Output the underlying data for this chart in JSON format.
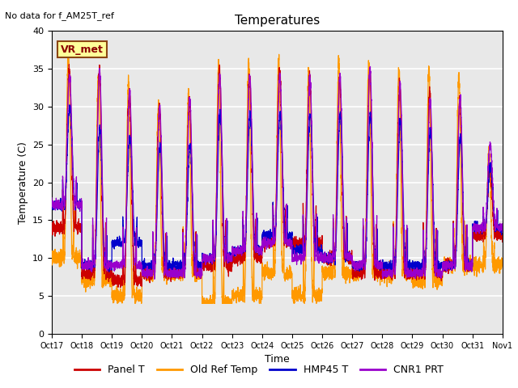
{
  "title": "Temperatures",
  "xlabel": "Time",
  "ylabel": "Temperature (C)",
  "figtext": "No data for f_AM25T_ref",
  "box_label": "VR_met",
  "ylim": [
    0,
    40
  ],
  "yticks": [
    0,
    5,
    10,
    15,
    20,
    25,
    30,
    35,
    40
  ],
  "xtick_labels": [
    "Oct 17",
    "Oct 18",
    "Oct 19",
    "Oct 20",
    "Oct 21",
    "Oct 22",
    "Oct 23",
    "Oct 24",
    "Oct 25",
    "Oct 26",
    "Oct 27",
    "Oct 28",
    "Oct 29",
    "Oct 30",
    "Oct 31",
    "Nov 1"
  ],
  "legend_entries": [
    "Panel T",
    "Old Ref Temp",
    "HMP45 T",
    "CNR1 PRT"
  ],
  "line_colors": [
    "#cc0000",
    "#ff9900",
    "#0000cc",
    "#9900cc"
  ],
  "background_color": "#e8e8e8",
  "grid_color": "white",
  "n_days": 15,
  "pts_per_day": 288
}
